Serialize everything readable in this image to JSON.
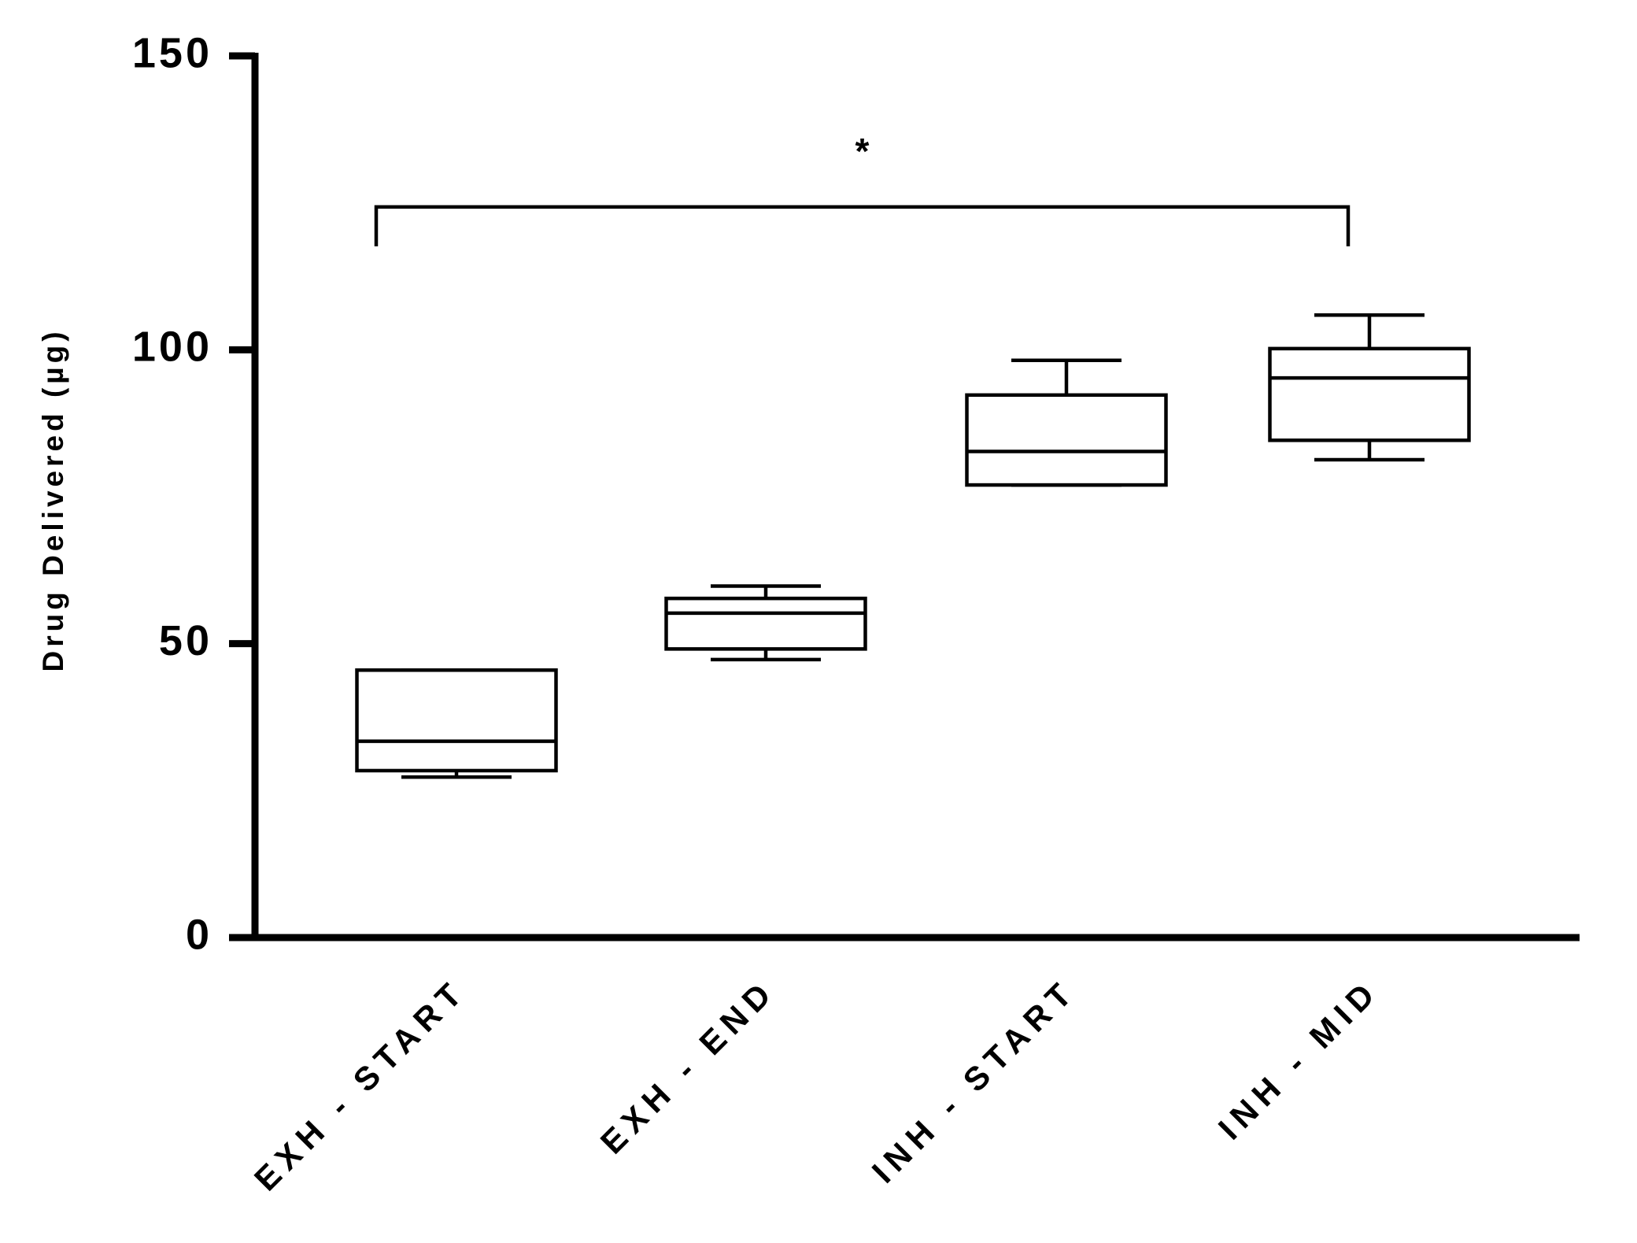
{
  "chart_data": {
    "type": "box",
    "y_label": "Drug Delivered (µg)",
    "categories": [
      "EXH - START",
      "EXH - END",
      "INH - START",
      "INH - MID"
    ],
    "min": [
      27.3,
      47.3,
      77.0,
      81.3
    ],
    "q1": [
      28.4,
      49.1,
      77.0,
      84.6
    ],
    "median": [
      33.4,
      55.2,
      82.7,
      95.2
    ],
    "q3": [
      45.5,
      57.7,
      92.3,
      100.2
    ],
    "max": [
      45.5,
      59.8,
      98.2,
      105.9
    ],
    "color": "#000000",
    "ylim": [
      0,
      150
    ],
    "yticks": [
      0,
      50,
      100,
      150
    ],
    "significance": {
      "label": "*",
      "y": 124.3
    }
  }
}
